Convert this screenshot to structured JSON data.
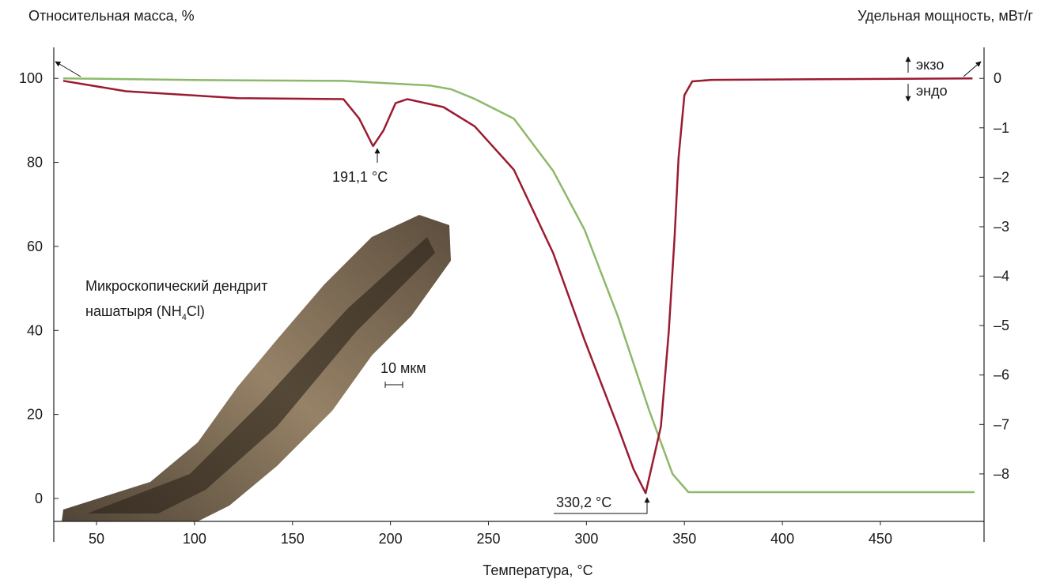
{
  "chart_data": {
    "type": "line",
    "ylabel": "Относительная масса, %",
    "y2label": "Удельная мощность, мВт/г",
    "xlabel": "Температура, °C",
    "xlim": [
      28.2,
      502.9
    ],
    "xticks": [
      50,
      100,
      150,
      200,
      250,
      300,
      350,
      400,
      450
    ],
    "ylim": [
      -5.45,
      110
    ],
    "yticks": [
      0,
      20,
      40,
      60,
      80,
      100
    ],
    "y2lim": [
      -8.96,
      0.85
    ],
    "y2ticks": [
      {
        "value": 0,
        "label": "0"
      },
      {
        "value": -1,
        "label": "–1"
      },
      {
        "value": -2,
        "label": "–2"
      },
      {
        "value": -3,
        "label": "–3"
      },
      {
        "value": -4,
        "label": "–4"
      },
      {
        "value": -5,
        "label": "–5"
      },
      {
        "value": -6,
        "label": "–6"
      },
      {
        "value": -7,
        "label": "–7"
      },
      {
        "value": -8,
        "label": "–8"
      }
    ],
    "series": [
      {
        "color": "#8db96a",
        "x": [
          33,
          100,
          176,
          220,
          231,
          243,
          263,
          283,
          299,
          316,
          332,
          344,
          352,
          498
        ],
        "values": [
          100,
          99.6,
          99.4,
          98.3,
          97.4,
          95.1,
          90.4,
          78,
          64,
          43.4,
          21,
          5.8,
          1.5,
          1.5
        ]
      },
      {
        "color": "#9b1b30",
        "axis": "y2",
        "x": [
          33,
          65,
          122,
          176,
          184,
          191.1,
          196.5,
          202.6,
          208.6,
          227,
          243,
          263,
          283,
          299,
          316,
          324,
          330.2,
          338,
          342,
          345,
          347,
          350,
          354,
          364,
          497
        ],
        "values": [
          -0.05,
          -0.26,
          -0.4,
          -0.42,
          -0.81,
          -1.37,
          -1.05,
          -0.5,
          -0.42,
          -0.58,
          -0.97,
          -1.85,
          -3.53,
          -5.29,
          -7.04,
          -7.9,
          -8.39,
          -7.04,
          -5.13,
          -3.21,
          -1.61,
          -0.34,
          -0.06,
          -0.03,
          0
        ]
      }
    ],
    "annotations": [
      "191,1 °C",
      "330,2 °C",
      "экзо",
      "эндо"
    ],
    "inset": {
      "caption": [
        "Микроскопический дендрит",
        "нашатыря (NH",
        "4",
        "Cl)"
      ],
      "scale": "10 мкм"
    }
  }
}
